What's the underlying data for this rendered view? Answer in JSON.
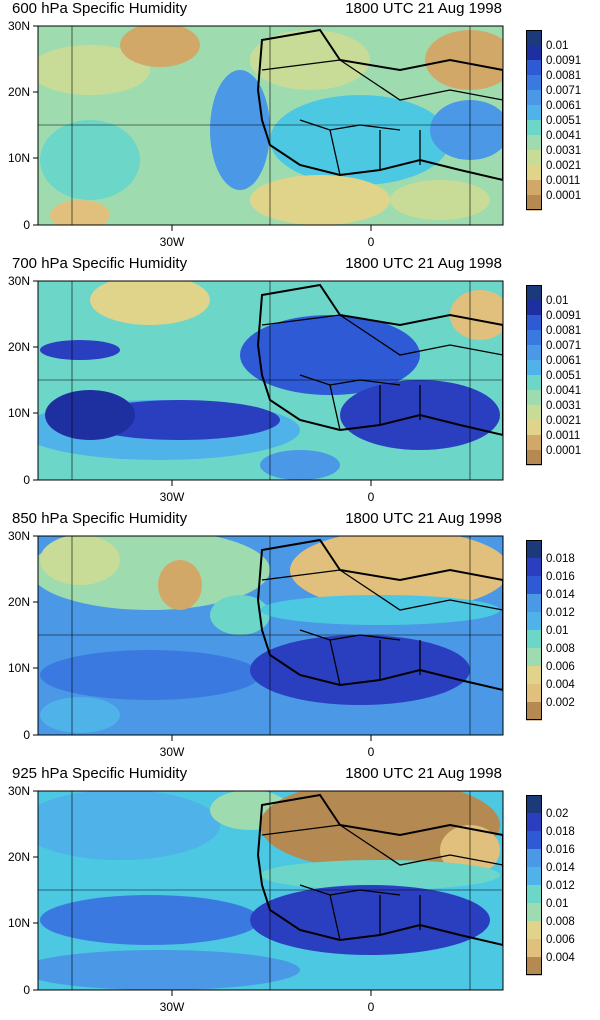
{
  "panels": [
    {
      "title_left": "600 hPa Specific Humidity",
      "title_right": "1800 UTC 21 Aug 1998",
      "colorbar_labels": [
        "0.01",
        "0.0091",
        "0.0081",
        "0.0071",
        "0.0061",
        "0.0051",
        "0.0041",
        "0.0031",
        "0.0021",
        "0.0011",
        "0.0001"
      ],
      "colorbar_colors": [
        "#1a3a7a",
        "#1e2fa0",
        "#2a3fc0",
        "#2e5ad6",
        "#3a7ae0",
        "#4a98e6",
        "#4fb2e8",
        "#4cc8e2",
        "#6cd6c8",
        "#9edcb0",
        "#c8dc98",
        "#e0d48a",
        "#e0c07c",
        "#d2a868",
        "#b48a52"
      ]
    },
    {
      "title_left": "700 hPa Specific Humidity",
      "title_right": "1800 UTC 21 Aug 1998",
      "colorbar_labels": [
        "0.01",
        "0.0091",
        "0.0081",
        "0.0071",
        "0.0061",
        "0.0051",
        "0.0041",
        "0.0031",
        "0.0021",
        "0.0011",
        "0.0001"
      ],
      "colorbar_colors": [
        "#1a3a7a",
        "#1e2fa0",
        "#2a3fc0",
        "#2e5ad6",
        "#3a7ae0",
        "#4a98e6",
        "#4fb2e8",
        "#4cc8e2",
        "#6cd6c8",
        "#9edcb0",
        "#c8dc98",
        "#e0d48a",
        "#e0c07c",
        "#d2a868",
        "#b48a52"
      ]
    },
    {
      "title_left": "850 hPa Specific Humidity",
      "title_right": "1800 UTC 21 Aug 1998",
      "colorbar_labels": [
        "0.018",
        "0.016",
        "0.014",
        "0.012",
        "0.01",
        "0.008",
        "0.006",
        "0.004",
        "0.002"
      ],
      "colorbar_colors": [
        "#1a3a7a",
        "#1e2fa0",
        "#2a3fc0",
        "#2e5ad6",
        "#3a7ae0",
        "#4a98e6",
        "#4fb2e8",
        "#4cc8e2",
        "#6cd6c8",
        "#9edcb0",
        "#c8dc98",
        "#e0d48a",
        "#e0c07c",
        "#d2a868",
        "#b48a52"
      ]
    },
    {
      "title_left": "925 hPa Specific Humidity",
      "title_right": "1800 UTC 21 Aug 1998",
      "colorbar_labels": [
        "0.02",
        "0.018",
        "0.016",
        "0.014",
        "0.012",
        "0.01",
        "0.008",
        "0.006",
        "0.004"
      ],
      "colorbar_colors": [
        "#1a3a7a",
        "#1e2fa0",
        "#2a3fc0",
        "#2e5ad6",
        "#3a7ae0",
        "#4a98e6",
        "#4fb2e8",
        "#4cc8e2",
        "#6cd6c8",
        "#9edcb0",
        "#c8dc98",
        "#e0d48a",
        "#e0c07c",
        "#d2a868",
        "#b48a52"
      ]
    }
  ],
  "lat_labels": [
    "30N",
    "20N",
    "10N",
    "0"
  ],
  "lon_labels": [
    "30W",
    "0"
  ]
}
